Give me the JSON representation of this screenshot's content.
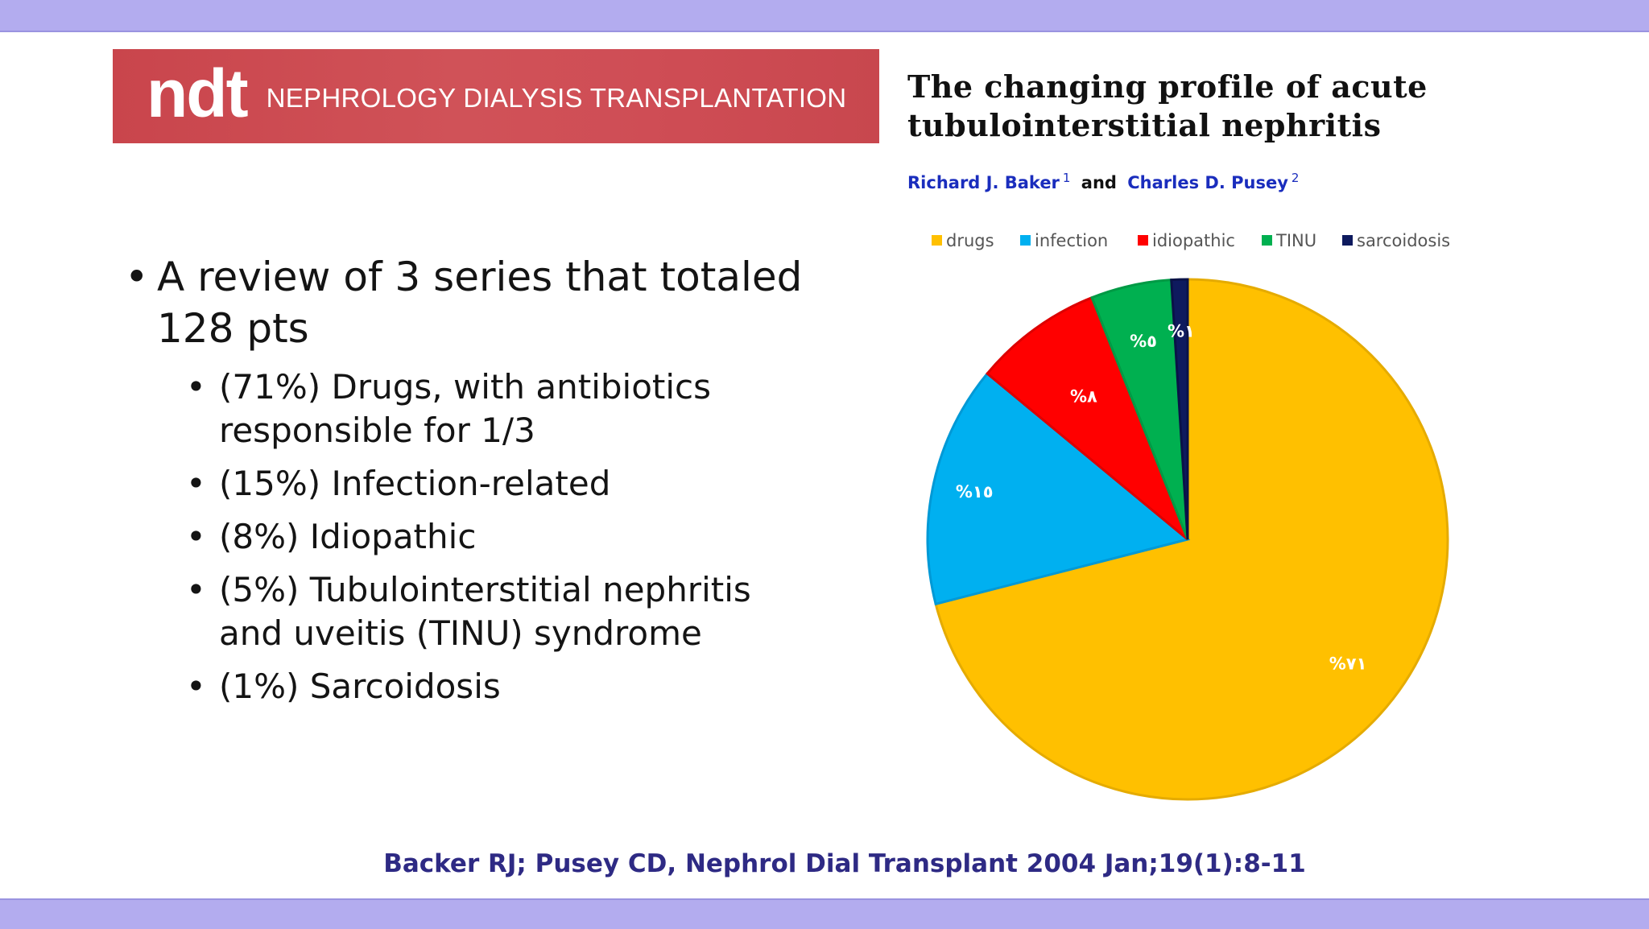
{
  "journal": {
    "logo": "ndt",
    "name": "NEPHROLOGY DIALYSIS TRANSPLANTATION"
  },
  "article": {
    "title": "The changing profile of acute tubulointerstitial nephritis",
    "authors": [
      {
        "name": "Richard J. Baker",
        "sup": "1"
      },
      {
        "name": "Charles D. Pusey",
        "sup": "2"
      }
    ],
    "and_text": "and"
  },
  "bullets": {
    "main": "A review of 3 series that totaled 128 pts",
    "items": [
      "(71%) Drugs, with antibiotics responsible for 1/3",
      "(15%) Infection-related",
      "(8%) Idiopathic",
      "(5%) Tubulointerstitial nephritis and uveitis (TINU) syndrome",
      "(1%) Sarcoidosis"
    ]
  },
  "citation": "Backer RJ; Pusey CD, Nephrol Dial Transplant 2004 Jan;19(1):8-11",
  "colors": {
    "band": "#b3acef",
    "banner": "#cd4a52",
    "citation": "#2e2a84"
  },
  "chart_data": {
    "type": "pie",
    "categories": [
      "drugs",
      "infection",
      "idiopathic",
      "TINU",
      "sarcoidosis"
    ],
    "values": [
      71,
      15,
      8,
      5,
      1
    ],
    "data_labels": [
      "%٧١",
      "%١٥",
      "%٨",
      "%٥",
      "%١"
    ],
    "colors": [
      "#ffc000",
      "#00b0f0",
      "#ff0000",
      "#00b050",
      "#0e1a5e"
    ],
    "legend_position": "top",
    "start": "12 o'clock, clockwise"
  }
}
